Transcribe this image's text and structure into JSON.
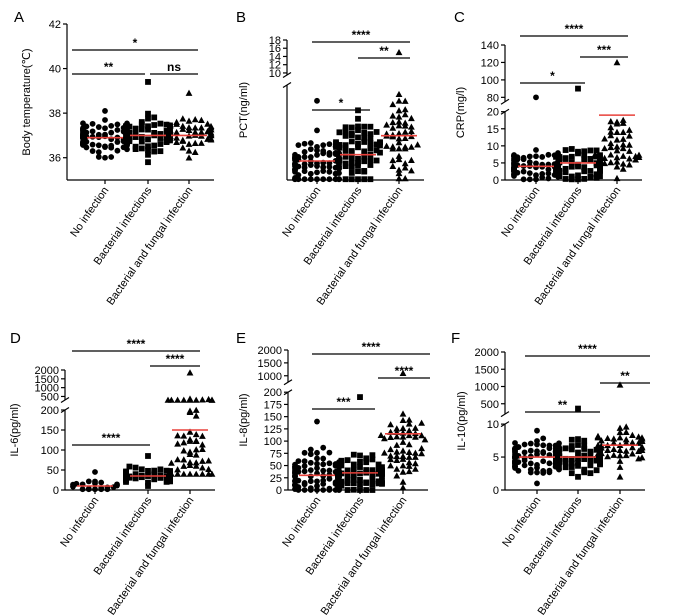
{
  "chart_data": [
    {
      "panel": "A",
      "type": "scatter",
      "ylabel": "Body temperature(℃)",
      "categories": [
        "No infection",
        "Bacterial infections",
        "Bacterial and fungal infection"
      ],
      "segments": [
        {
          "range": [
            35,
            42
          ],
          "ticks": [
            36,
            38,
            40,
            42
          ]
        }
      ],
      "medians": [
        36.9,
        37.0,
        37.0
      ],
      "series": [
        {
          "name": "No infection",
          "marker": "circle",
          "n": 100,
          "center": 36.9,
          "spread": 0.5,
          "min": 36.0,
          "max": 38.1
        },
        {
          "name": "Bacterial infections",
          "marker": "square",
          "n": 60,
          "center": 37.0,
          "spread": 0.6,
          "min": 35.8,
          "max": 39.4
        },
        {
          "name": "Bacterial and fungal infection",
          "marker": "triangle",
          "n": 55,
          "center": 37.0,
          "spread": 0.6,
          "min": 36.0,
          "max": 38.9
        }
      ],
      "brackets": [
        {
          "from": 0,
          "to": 1,
          "level": 1,
          "label": "**"
        },
        {
          "from": 1,
          "to": 2,
          "level": 1,
          "label": "ns"
        },
        {
          "from": 0,
          "to": 2,
          "level": 2,
          "label": "*"
        }
      ]
    },
    {
      "panel": "B",
      "type": "scatter",
      "ylabel": "PCT(ng/ml)",
      "categories": [
        "No infection",
        "Bacterial infections",
        "Bacterial and fungal infection"
      ],
      "segments": [
        {
          "range": [
            0,
            6
          ],
          "ticks": []
        },
        {
          "range": [
            9.5,
            18
          ],
          "ticks": [
            10,
            12,
            14,
            16,
            18
          ]
        }
      ],
      "medians": [
        1.2,
        1.6,
        2.8
      ],
      "series": [
        {
          "name": "No infection",
          "marker": "circle",
          "n": 85,
          "center": 1.2,
          "spread": 1.2,
          "min": 0.05,
          "max": 5.0
        },
        {
          "name": "Bacterial infections",
          "marker": "square",
          "n": 65,
          "center": 1.8,
          "spread": 1.5,
          "min": 0.05,
          "max": 4.4
        },
        {
          "name": "Bacterial and fungal infection",
          "marker": "triangle",
          "n": 50,
          "center": 2.8,
          "spread": 1.8,
          "min": 0.1,
          "max": 15.0
        }
      ],
      "brackets": [
        {
          "from": 0,
          "to": 1,
          "level": 1,
          "label": "*"
        },
        {
          "from": 1,
          "to": 2,
          "level": 2,
          "label": "**"
        },
        {
          "from": 0,
          "to": 2,
          "level": 3,
          "label": "****"
        }
      ]
    },
    {
      "panel": "C",
      "type": "scatter",
      "ylabel": "CRP(mg/l)",
      "categories": [
        "No infection",
        "Bacterial infections",
        "Bacterial and fungal infection"
      ],
      "segments": [
        {
          "range": [
            0,
            20
          ],
          "ticks": [
            0,
            5,
            10,
            15,
            20
          ]
        },
        {
          "range": [
            75,
            140
          ],
          "ticks": [
            80,
            100,
            120,
            140
          ]
        }
      ],
      "medians": [
        4.0,
        5.0,
        19.0
      ],
      "series": [
        {
          "name": "No infection",
          "marker": "circle",
          "n": 85,
          "center": 4.0,
          "spread": 3.5,
          "min": 0.2,
          "max": 80
        },
        {
          "name": "Bacterial infections",
          "marker": "square",
          "n": 60,
          "center": 5.0,
          "spread": 3.5,
          "min": 0.2,
          "max": 90
        },
        {
          "name": "Bacterial and fungal infection",
          "marker": "triangle",
          "n": 45,
          "center": 10.0,
          "spread": 6.0,
          "min": 0.5,
          "max": 120
        }
      ],
      "brackets": [
        {
          "from": 0,
          "to": 1,
          "level": 1,
          "label": "*"
        },
        {
          "from": 1,
          "to": 2,
          "level": 2,
          "label": "***"
        },
        {
          "from": 0,
          "to": 2,
          "level": 3,
          "label": "****"
        }
      ]
    },
    {
      "panel": "D",
      "type": "scatter",
      "ylabel": "IL-6(pg/ml)",
      "categories": [
        "No infection",
        "Bacterial infections",
        "Bacterial and fungal infection"
      ],
      "segments": [
        {
          "range": [
            0,
            200
          ],
          "ticks": [
            0,
            50,
            100,
            150,
            200
          ]
        },
        {
          "range": [
            300,
            2000
          ],
          "ticks": [
            500,
            1000,
            1500,
            2000
          ]
        }
      ],
      "medians": [
        10,
        35,
        150
      ],
      "series": [
        {
          "name": "No infection",
          "marker": "circle",
          "n": 20,
          "center": 10,
          "spread": 10,
          "min": 2,
          "max": 45
        },
        {
          "name": "Bacterial infections",
          "marker": "square",
          "n": 55,
          "center": 35,
          "spread": 15,
          "min": 10,
          "max": 85
        },
        {
          "name": "Bacterial and fungal infection",
          "marker": "triangle",
          "n": 55,
          "center": 150,
          "spread": 150,
          "min": 40,
          "max": 1850
        }
      ],
      "brackets": [
        {
          "from": 0,
          "to": 1,
          "level": 1,
          "label": "****"
        },
        {
          "from": 1,
          "to": 2,
          "level": 2,
          "label": "****"
        },
        {
          "from": 0,
          "to": 2,
          "level": 3,
          "label": "****"
        }
      ]
    },
    {
      "panel": "E",
      "type": "scatter",
      "ylabel": "IL-8(pg/ml)",
      "categories": [
        "No infection",
        "Bacterial infections",
        "Bacterial and fungal infection"
      ],
      "segments": [
        {
          "range": [
            0,
            200
          ],
          "ticks": [
            0,
            25,
            50,
            75,
            100,
            125,
            150,
            175,
            200
          ]
        },
        {
          "range": [
            750,
            2000
          ],
          "ticks": [
            1000,
            1500,
            2000
          ]
        }
      ],
      "medians": [
        30,
        35,
        115
      ],
      "series": [
        {
          "name": "No infection",
          "marker": "circle",
          "n": 90,
          "center": 30,
          "spread": 35,
          "min": 0,
          "max": 140
        },
        {
          "name": "Bacterial infections",
          "marker": "square",
          "n": 65,
          "center": 35,
          "spread": 40,
          "min": 0,
          "max": 190
        },
        {
          "name": "Bacterial and fungal infection",
          "marker": "triangle",
          "n": 55,
          "center": 100,
          "spread": 60,
          "min": 5,
          "max": 1100
        }
      ],
      "brackets": [
        {
          "from": 0,
          "to": 1,
          "level": 1,
          "label": "***"
        },
        {
          "from": 1,
          "to": 2,
          "level": 2,
          "label": "****"
        },
        {
          "from": 0,
          "to": 2,
          "level": 3,
          "label": "****"
        }
      ]
    },
    {
      "panel": "F",
      "type": "scatter",
      "ylabel": "IL-10(pg/ml)",
      "categories": [
        "No infection",
        "Bacterial infections",
        "Bacterial and fungal infection"
      ],
      "segments": [
        {
          "range": [
            0,
            10
          ],
          "ticks": [
            0,
            5,
            10
          ]
        },
        {
          "range": [
            200,
            2000
          ],
          "ticks": [
            500,
            1000,
            1500,
            2000
          ]
        }
      ],
      "medians": [
        5.0,
        5.0,
        6.8
      ],
      "series": [
        {
          "name": "No infection",
          "marker": "circle",
          "n": 100,
          "center": 5.0,
          "spread": 1.8,
          "min": 1.0,
          "max": 9.0
        },
        {
          "name": "Bacterial infections",
          "marker": "square",
          "n": 60,
          "center": 5.0,
          "spread": 1.8,
          "min": 2.0,
          "max": 360
        },
        {
          "name": "Bacterial and fungal infection",
          "marker": "triangle",
          "n": 50,
          "center": 6.5,
          "spread": 2.2,
          "min": 2.0,
          "max": 1050
        }
      ],
      "brackets": [
        {
          "from": 0,
          "to": 1,
          "level": 1,
          "label": "**"
        },
        {
          "from": 1,
          "to": 2,
          "level": 2,
          "label": "**"
        },
        {
          "from": 0,
          "to": 2,
          "level": 3,
          "label": "****"
        }
      ]
    }
  ],
  "style": {
    "median_color": "#e8403a",
    "marker_color": "#000000",
    "axis_color": "#000000"
  }
}
